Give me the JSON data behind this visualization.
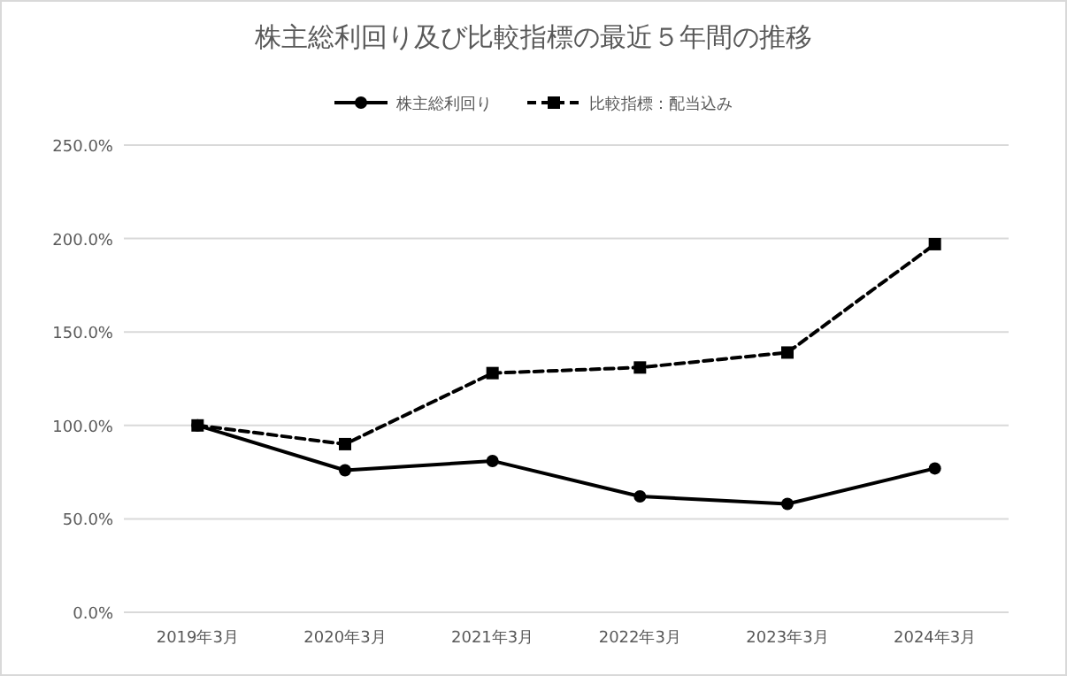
{
  "chart_data": {
    "type": "line",
    "title": "株主総利回り及び比較指標の最近５年間の推移",
    "categories": [
      "2019年3月",
      "2020年3月",
      "2021年3月",
      "2022年3月",
      "2023年3月",
      "2024年3月"
    ],
    "series": [
      {
        "name": "株主総利回り",
        "color": "#000000",
        "marker": "circle",
        "line_style": "solid",
        "values": [
          100,
          76,
          81,
          62,
          58,
          77
        ]
      },
      {
        "name": "比較指標：配当込み",
        "color": "#000000",
        "marker": "square",
        "line_style": "dashed",
        "values": [
          100,
          90,
          128,
          131,
          139,
          197
        ]
      }
    ],
    "ylim": [
      0,
      250
    ],
    "yticks": [
      {
        "value": 0,
        "label": "0.0%"
      },
      {
        "value": 50,
        "label": "50.0%"
      },
      {
        "value": 100,
        "label": "100.0%"
      },
      {
        "value": 150,
        "label": "150.0%"
      },
      {
        "value": 200,
        "label": "200.0%"
      },
      {
        "value": 250,
        "label": "250.0%"
      }
    ],
    "grid": "y",
    "legend": "top"
  }
}
